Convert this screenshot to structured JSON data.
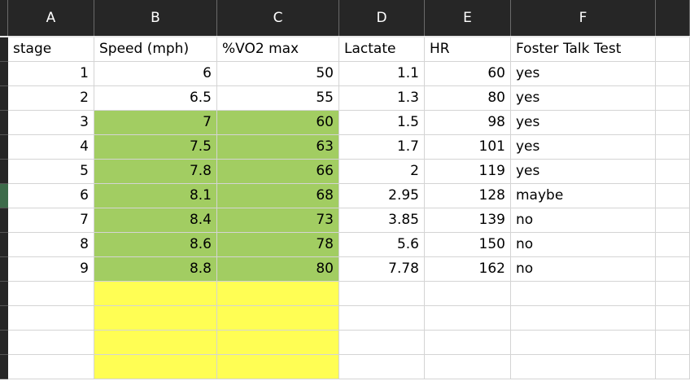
{
  "columns": [
    "A",
    "B",
    "C",
    "D",
    "E",
    "F"
  ],
  "header": [
    "stage",
    "Speed (mph)",
    "%VO2 max",
    "Lactate",
    "HR",
    "Foster Talk Test"
  ],
  "rows": [
    [
      1,
      6,
      50,
      1.1,
      60,
      "yes"
    ],
    [
      2,
      6.5,
      55,
      1.3,
      80,
      "yes"
    ],
    [
      3,
      7,
      60,
      1.5,
      98,
      "yes"
    ],
    [
      4,
      7.5,
      63,
      1.7,
      101,
      "yes"
    ],
    [
      5,
      7.8,
      66,
      2,
      119,
      "yes"
    ],
    [
      6,
      8.1,
      68,
      2.95,
      128,
      "maybe"
    ],
    [
      7,
      8.4,
      73,
      3.85,
      139,
      "no"
    ],
    [
      8,
      8.6,
      78,
      5.6,
      150,
      "no"
    ],
    [
      9,
      8.8,
      80,
      7.78,
      162,
      "no"
    ]
  ]
}
